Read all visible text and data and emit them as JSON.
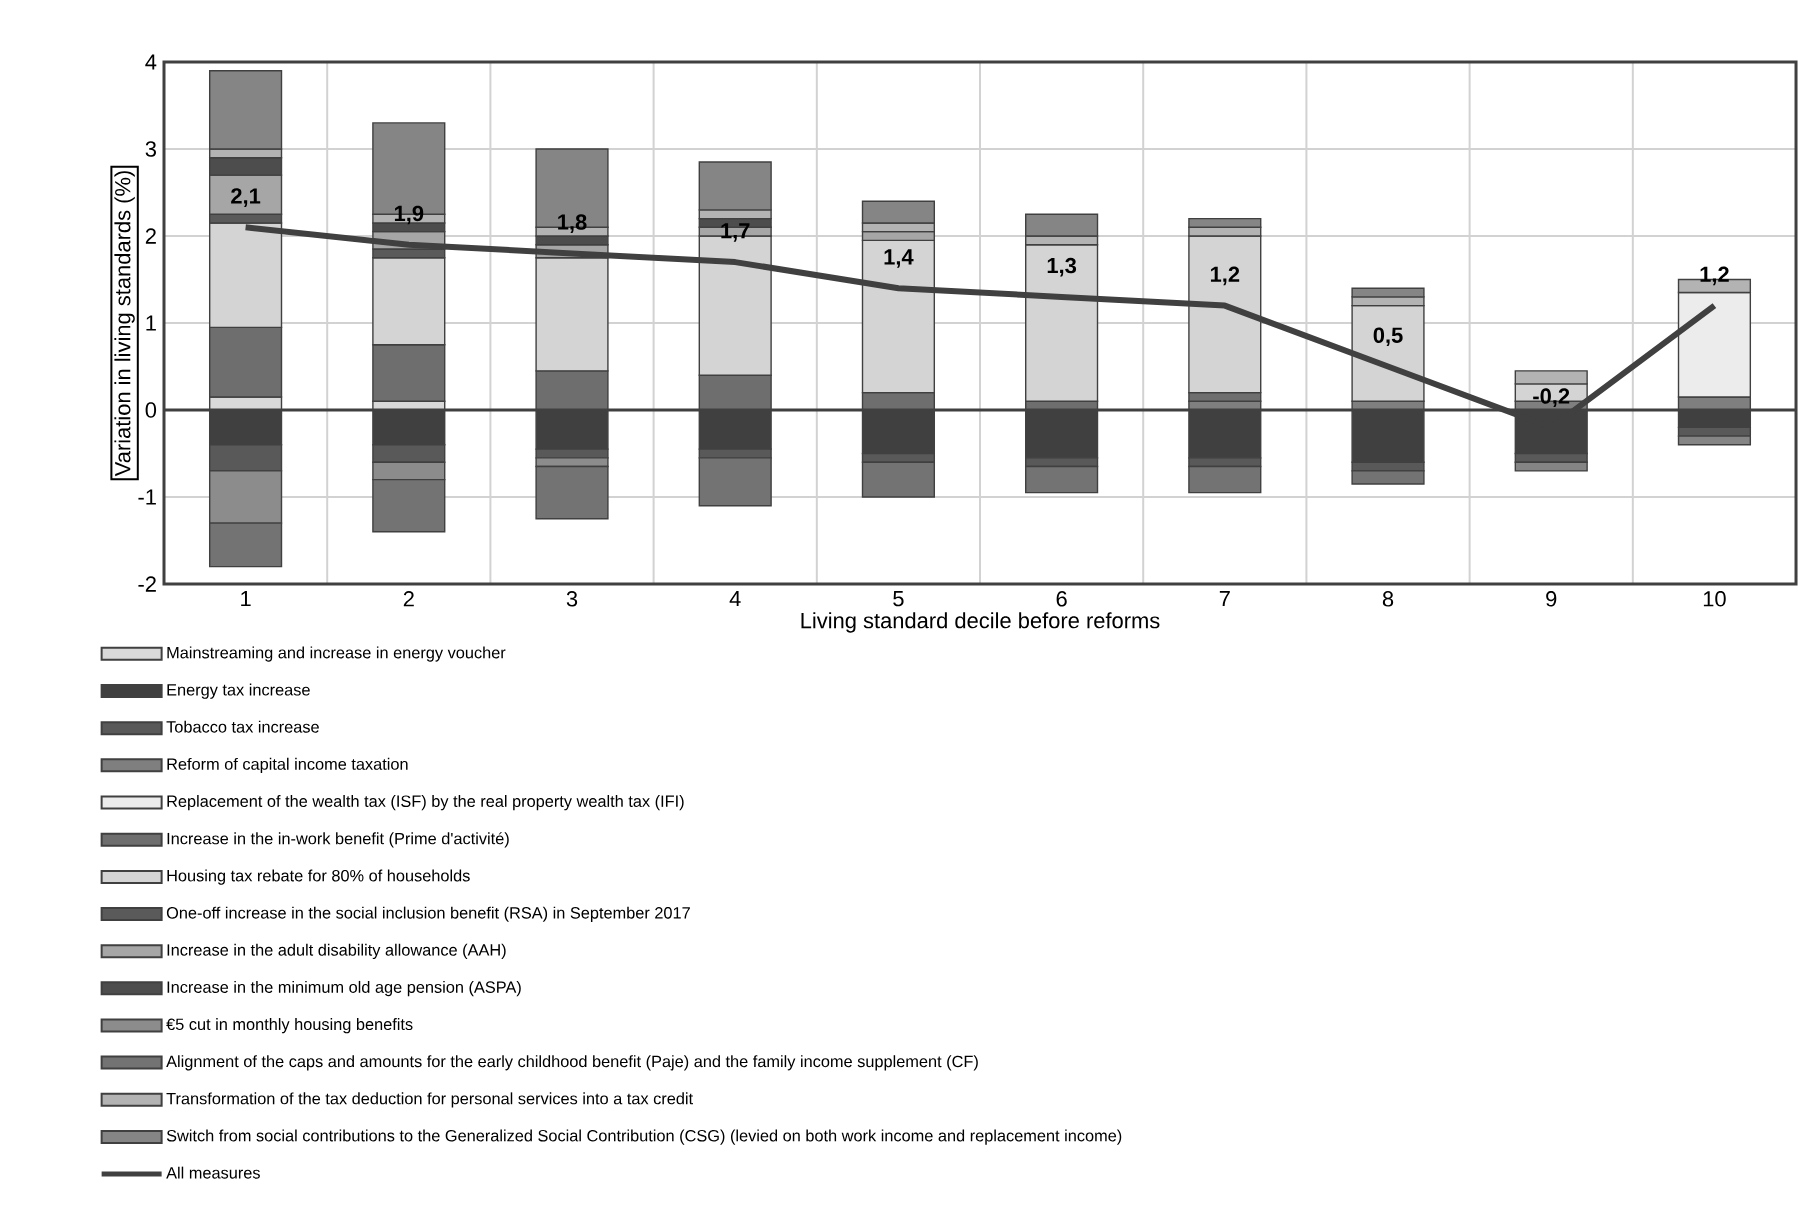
{
  "chart_data": {
    "type": "bar",
    "stacked": true,
    "xlabel": "Living standard decile before reforms",
    "ylabel": "Variation in living standards (%)",
    "categories": [
      "1",
      "2",
      "3",
      "4",
      "5",
      "6",
      "7",
      "8",
      "9",
      "10"
    ],
    "ylim": [
      -2,
      4
    ],
    "yticks": [
      -2,
      -1,
      0,
      1,
      2,
      3,
      4
    ],
    "grid": true,
    "legend": "bottom",
    "series": [
      {
        "name": "Mainstreaming and increase in energy voucher",
        "color": "#d9d9d9",
        "values": [
          0.15,
          0.1,
          0,
          0,
          0,
          0,
          0,
          0,
          0,
          0
        ]
      },
      {
        "name": "Energy tax increase",
        "color": "#404040",
        "values": [
          -0.4,
          -0.4,
          -0.45,
          -0.45,
          -0.5,
          -0.55,
          -0.55,
          -0.6,
          -0.5,
          -0.2
        ]
      },
      {
        "name": "Tobacco tax increase",
        "color": "#595959",
        "values": [
          -0.3,
          -0.2,
          -0.1,
          -0.1,
          -0.1,
          -0.1,
          -0.1,
          -0.1,
          -0.1,
          -0.1
        ]
      },
      {
        "name": "Reform of capital income taxation",
        "color": "#7f7f7f",
        "values": [
          0,
          0,
          0,
          0,
          0,
          0,
          0.1,
          0.1,
          0.1,
          0.15
        ]
      },
      {
        "name": "Replacement of the wealth tax (ISF) by the real property wealth tax (IFI)",
        "color": "#ececec",
        "values": [
          0,
          0,
          0,
          0,
          0,
          0,
          0,
          0,
          0,
          1.2
        ]
      },
      {
        "name": "Increase in the in-work benefit (Prime d'activité)",
        "color": "#6e6e6e",
        "values": [
          0.8,
          0.65,
          0.45,
          0.4,
          0.2,
          0.1,
          0.1,
          0,
          0,
          0
        ]
      },
      {
        "name": "Housing tax rebate for 80% of households",
        "color": "#d4d4d4",
        "values": [
          1.2,
          1.0,
          1.3,
          1.6,
          1.75,
          1.8,
          1.8,
          1.1,
          0.2,
          0
        ]
      },
      {
        "name": "One-off increase in the social inclusion benefit (RSA) in September 2017",
        "color": "#5a5a5a",
        "values": [
          0.1,
          0.1,
          0,
          0,
          0,
          0,
          0,
          0,
          0,
          0
        ]
      },
      {
        "name": "Increase in the adult disability allowance (AAH)",
        "color": "#a6a6a6",
        "values": [
          0.45,
          0.2,
          0.15,
          0.1,
          0.1,
          0,
          0,
          0,
          0,
          0
        ]
      },
      {
        "name": "Increase in the minimum old age pension (ASPA)",
        "color": "#4d4d4d",
        "values": [
          0.2,
          0.1,
          0.1,
          0.1,
          0,
          0,
          0,
          0,
          0,
          0
        ]
      },
      {
        "name": "€5 cut in monthly housing benefits",
        "color": "#8c8c8c",
        "values": [
          -0.6,
          -0.2,
          -0.1,
          0,
          0,
          0,
          0,
          0,
          0,
          0
        ]
      },
      {
        "name": "Alignment of the caps and amounts for the early childhood benefit (Paje) and the family income supplement (CF)",
        "color": "#737373",
        "values": [
          -0.5,
          -0.6,
          -0.6,
          -0.55,
          -0.4,
          -0.3,
          -0.3,
          -0.15,
          0,
          0
        ]
      },
      {
        "name": "Transformation of the tax deduction for personal services into a tax credit",
        "color": "#b3b3b3",
        "values": [
          0.1,
          0.1,
          0.1,
          0.1,
          0.1,
          0.1,
          0.1,
          0.1,
          0.15,
          0.15
        ]
      },
      {
        "name": "Switch from social contributions to the Generalized Social Contribution (CSG) (levied on both work income and replacement income)",
        "color": "#858585",
        "values": [
          0.9,
          1.05,
          0.9,
          0.55,
          0.25,
          0.25,
          0.1,
          0.1,
          -0.1,
          -0.1
        ]
      },
      {
        "name": "All measures",
        "type": "line",
        "color": "#404040",
        "values": [
          2.1,
          1.9,
          1.8,
          1.7,
          1.4,
          1.3,
          1.2,
          0.5,
          -0.2,
          1.2
        ],
        "value_labels": [
          "2,1",
          "1,9",
          "1,8",
          "1,7",
          "1,4",
          "1,3",
          "1,2",
          "0,5",
          "-0,2",
          "1,2"
        ]
      }
    ]
  }
}
